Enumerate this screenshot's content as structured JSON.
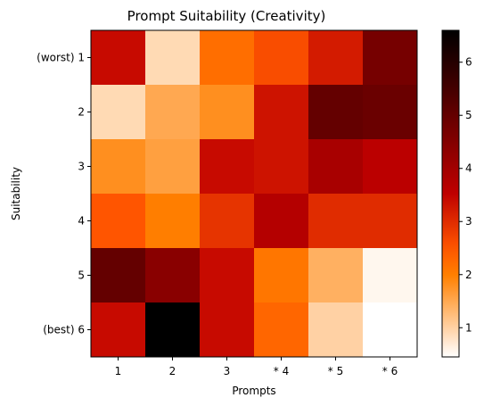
{
  "chart_data": {
    "type": "heatmap",
    "title": "Prompt Suitability (Creativity)",
    "xlabel": "Prompts",
    "ylabel": "Suitability",
    "x_categories": [
      "1",
      "2",
      "3",
      "* 4",
      "* 5",
      "* 6"
    ],
    "y_categories": [
      "(worst) 1",
      "2",
      "3",
      "4",
      "5",
      "(best) 6"
    ],
    "values": [
      [
        3.4,
        0.9,
        2.2,
        2.6,
        3.2,
        4.7
      ],
      [
        0.9,
        1.5,
        1.8,
        3.3,
        5.0,
        4.9
      ],
      [
        1.8,
        1.6,
        3.4,
        3.3,
        3.9,
        3.6
      ],
      [
        2.5,
        2.0,
        2.9,
        3.7,
        3.0,
        3.0
      ],
      [
        5.0,
        4.4,
        3.4,
        2.1,
        1.4,
        0.55
      ],
      [
        3.4,
        6.6,
        3.4,
        2.3,
        1.0,
        0.45
      ]
    ],
    "colormap": "gist_heat_r",
    "colorbar": {
      "min": 0.45,
      "max": 6.6,
      "ticks": [
        1,
        2,
        3,
        4,
        5,
        6
      ]
    },
    "grid": false,
    "colors": {
      "low": "#ffffff",
      "high": "#000000"
    }
  }
}
